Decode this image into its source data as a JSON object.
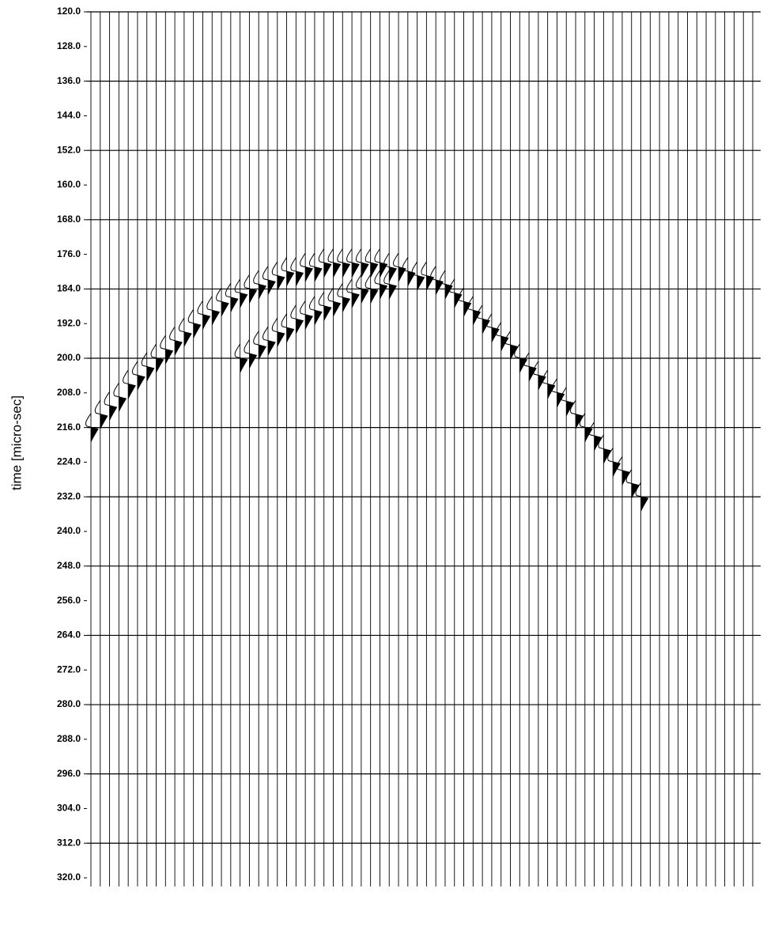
{
  "chart_data": {
    "type": "wiggle",
    "y_label": "time [micro-sec]",
    "ylim": [
      120,
      322
    ],
    "yticks": [
      {
        "value": 120,
        "label": "120.0"
      },
      {
        "value": 128,
        "label": "128.0"
      },
      {
        "value": 136,
        "label": "136.0"
      },
      {
        "value": 144,
        "label": "144.0"
      },
      {
        "value": 152,
        "label": "152.0"
      },
      {
        "value": 160,
        "label": "160.0"
      },
      {
        "value": 168,
        "label": "168.0"
      },
      {
        "value": 176,
        "label": "176.0"
      },
      {
        "value": 184,
        "label": "184.0"
      },
      {
        "value": 192,
        "label": "192.0"
      },
      {
        "value": 200,
        "label": "200.0"
      },
      {
        "value": 208,
        "label": "208.0"
      },
      {
        "value": 216,
        "label": "216.0"
      },
      {
        "value": 224,
        "label": "224.0"
      },
      {
        "value": 232,
        "label": "232.0"
      },
      {
        "value": 240,
        "label": "240.0"
      },
      {
        "value": 248,
        "label": "248.0"
      },
      {
        "value": 256,
        "label": "256.0"
      },
      {
        "value": 264,
        "label": "264.0"
      },
      {
        "value": 272,
        "label": "272.0"
      },
      {
        "value": 280,
        "label": "280.0"
      },
      {
        "value": 288,
        "label": "288.0"
      },
      {
        "value": 296,
        "label": "296.0"
      },
      {
        "value": 304,
        "label": "304.0"
      },
      {
        "value": 312,
        "label": "312.0"
      },
      {
        "value": 320,
        "label": "320.0"
      }
    ],
    "grid": true,
    "series": [
      {
        "color": "#000000",
        "values": [
          216,
          213,
          211,
          209,
          206,
          204,
          202,
          200,
          198,
          196,
          194,
          192,
          190,
          189,
          187,
          186,
          185,
          184,
          183,
          182,
          181,
          180,
          180,
          179,
          179,
          178,
          178,
          178,
          178,
          178,
          178,
          178,
          179,
          179,
          180,
          181,
          181,
          182,
          183,
          185,
          187,
          189,
          191,
          193,
          195,
          197,
          200,
          202,
          204,
          206,
          208,
          210,
          213,
          216,
          218,
          221,
          224,
          226,
          229,
          232,
          null,
          null,
          null,
          null,
          null,
          null,
          null,
          null,
          null,
          null,
          null,
          null
        ]
      },
      {
        "color": "#000000",
        "values": [
          null,
          null,
          null,
          null,
          null,
          null,
          null,
          null,
          null,
          null,
          null,
          null,
          null,
          null,
          null,
          null,
          200,
          199,
          197,
          196,
          194,
          193,
          191,
          190,
          189,
          188,
          187,
          186,
          185,
          184,
          184,
          183,
          183,
          null,
          null,
          null,
          null,
          null,
          null,
          null,
          null,
          null,
          null,
          null,
          null,
          null,
          null,
          null,
          null,
          null,
          null,
          null,
          null,
          null,
          null,
          null,
          null,
          null,
          null,
          null,
          null,
          null,
          null,
          null,
          null,
          null,
          null,
          null,
          null,
          null,
          null,
          null
        ]
      }
    ]
  }
}
